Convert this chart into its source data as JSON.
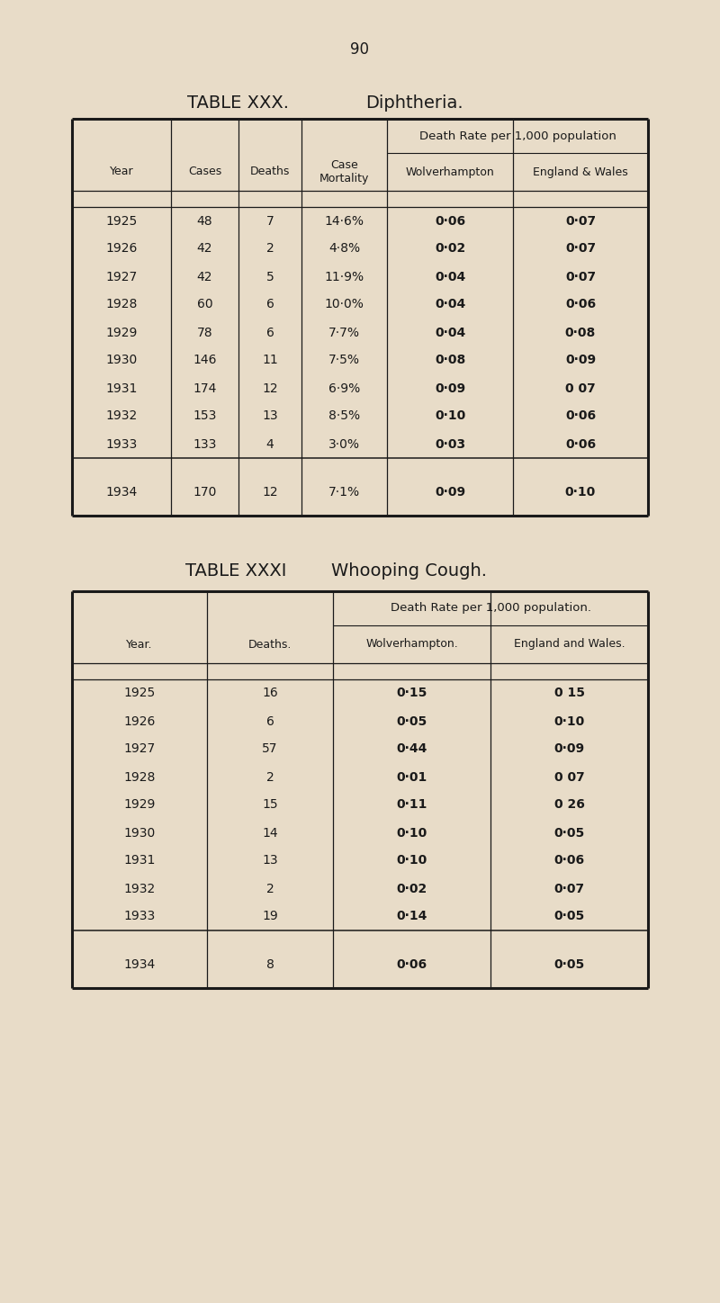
{
  "page_number": "90",
  "bg_color": "#e8dcc8",
  "table1": {
    "title": "TABLE XXX.",
    "subtitle": "Diphtheria.",
    "header_span": "Death Rate per 1,000 population",
    "col_headers_left": [
      "Year",
      "Cases",
      "Deaths",
      "Case\nMortality"
    ],
    "col_headers_right": [
      "Wolverhampton",
      "England & Wales"
    ],
    "rows_main": [
      [
        "1925",
        "48",
        "7",
        "14·6%",
        "0·06",
        "0·07"
      ],
      [
        "1926",
        "42",
        "2",
        "4·8%",
        "0·02",
        "0·07"
      ],
      [
        "1927",
        "42",
        "5",
        "11·9%",
        "0·04",
        "0·07"
      ],
      [
        "1928",
        "60",
        "6",
        "10·0%",
        "0·04",
        "0·06"
      ],
      [
        "1929",
        "78",
        "6",
        "7·7%",
        "0·04",
        "0·08"
      ],
      [
        "1930",
        "146",
        "11",
        "7·5%",
        "0·08",
        "0·09"
      ],
      [
        "1931",
        "174",
        "12",
        "6·9%",
        "0·09",
        "0 07"
      ],
      [
        "1932",
        "153",
        "13",
        "8·5%",
        "0·10",
        "0·06"
      ],
      [
        "1933",
        "133",
        "4",
        "3·0%",
        "0·03",
        "0·06"
      ]
    ],
    "row_last": [
      "1934",
      "170",
      "12",
      "7·1%",
      "0·09",
      "0·10"
    ]
  },
  "table2": {
    "title": "TABLE XXXI",
    "subtitle": "Whooping Cough.",
    "header_span": "Death Rate per 1,000 population.",
    "col_headers": [
      "Year.",
      "Deaths.",
      "Wolverhampton.",
      "England and Wales."
    ],
    "rows_main": [
      [
        "1925",
        "16",
        "0·15",
        "0 15"
      ],
      [
        "1926",
        "6",
        "0·05",
        "0·10"
      ],
      [
        "1927",
        "57",
        "0·44",
        "0·09"
      ],
      [
        "1928",
        "2",
        "0·01",
        "0 07"
      ],
      [
        "1929",
        "15",
        "0·11",
        "0 26"
      ],
      [
        "1930",
        "14",
        "0·10",
        "0·05"
      ],
      [
        "1931",
        "13",
        "0·10",
        "0·06"
      ],
      [
        "1932",
        "2",
        "0·02",
        "0·07"
      ],
      [
        "1933",
        "19",
        "0·14",
        "0·05"
      ]
    ],
    "row_last": [
      "1934",
      "8",
      "0·06",
      "0·05"
    ]
  }
}
